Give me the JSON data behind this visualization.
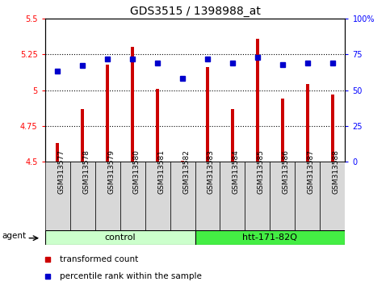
{
  "title": "GDS3515 / 1398988_at",
  "samples": [
    "GSM313577",
    "GSM313578",
    "GSM313579",
    "GSM313580",
    "GSM313581",
    "GSM313582",
    "GSM313583",
    "GSM313584",
    "GSM313585",
    "GSM313586",
    "GSM313587",
    "GSM313588"
  ],
  "bar_values": [
    4.63,
    4.87,
    5.18,
    5.3,
    5.01,
    4.505,
    5.16,
    4.87,
    5.36,
    4.94,
    5.04,
    4.97
  ],
  "dot_values": [
    63,
    67,
    72,
    72,
    69,
    58,
    72,
    69,
    73,
    68,
    69,
    69
  ],
  "bar_color": "#cc0000",
  "dot_color": "#0000cc",
  "ylim_left": [
    4.5,
    5.5
  ],
  "ylim_right": [
    0,
    100
  ],
  "yticks_left": [
    4.5,
    4.75,
    5.0,
    5.25,
    5.5
  ],
  "yticks_right": [
    0,
    25,
    50,
    75,
    100
  ],
  "ytick_labels_left": [
    "4.5",
    "4.75",
    "5",
    "5.25",
    "5.5"
  ],
  "ytick_labels_right": [
    "0",
    "25",
    "50",
    "75",
    "100%"
  ],
  "grid_values": [
    4.75,
    5.0,
    5.25
  ],
  "bar_bottom": 4.5,
  "groups": [
    {
      "label": "control",
      "start": 0,
      "end": 6,
      "color": "#ccffcc"
    },
    {
      "label": "htt-171-82Q",
      "start": 6,
      "end": 12,
      "color": "#44ee44"
    }
  ],
  "agent_label": "agent",
  "legend_bar_label": "transformed count",
  "legend_dot_label": "percentile rank within the sample",
  "title_fontsize": 10,
  "tick_fontsize": 7,
  "label_fontsize": 8,
  "bar_width": 0.15
}
